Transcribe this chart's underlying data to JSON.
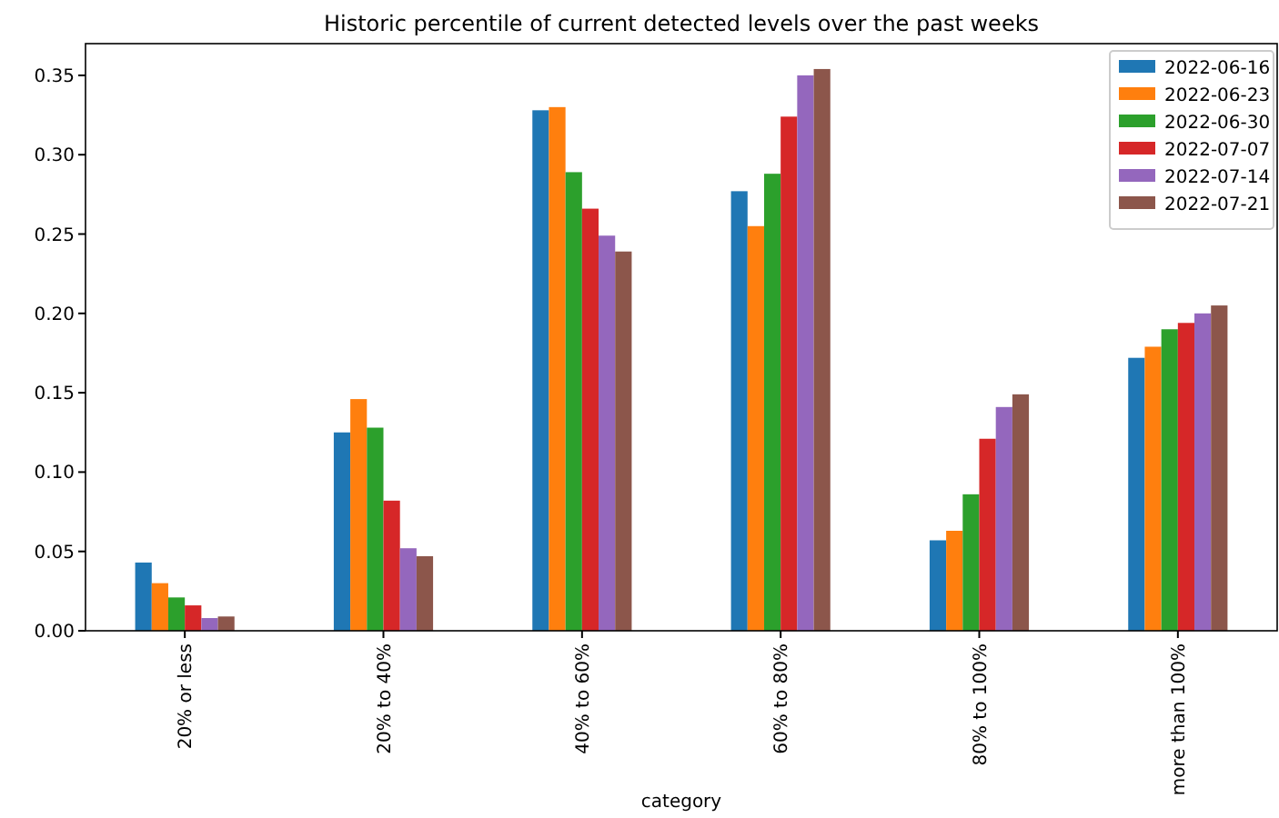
{
  "chart_data": {
    "type": "bar",
    "title": "Historic percentile of current detected levels over the past weeks",
    "xlabel": "category",
    "categories": [
      "20% or less",
      "20% to 40%",
      "40% to 60%",
      "60% to 80%",
      "80% to 100%",
      "more than 100%"
    ],
    "series": [
      {
        "name": "2022-06-16",
        "color": "#1f77b4",
        "values": [
          0.043,
          0.125,
          0.328,
          0.277,
          0.057,
          0.172
        ]
      },
      {
        "name": "2022-06-23",
        "color": "#ff7f0e",
        "values": [
          0.03,
          0.146,
          0.33,
          0.255,
          0.063,
          0.179
        ]
      },
      {
        "name": "2022-06-30",
        "color": "#2ca02c",
        "values": [
          0.021,
          0.128,
          0.289,
          0.288,
          0.086,
          0.19
        ]
      },
      {
        "name": "2022-07-07",
        "color": "#d62728",
        "values": [
          0.016,
          0.082,
          0.266,
          0.324,
          0.121,
          0.194
        ]
      },
      {
        "name": "2022-07-14",
        "color": "#9467bd",
        "values": [
          0.008,
          0.052,
          0.249,
          0.35,
          0.141,
          0.2
        ]
      },
      {
        "name": "2022-07-21",
        "color": "#8c564b",
        "values": [
          0.009,
          0.047,
          0.239,
          0.354,
          0.149,
          0.205
        ]
      }
    ],
    "ylim": [
      0,
      0.37
    ],
    "yticks": [
      {
        "value": 0,
        "label": "0.00"
      },
      {
        "value": 0.05,
        "label": "0.05"
      },
      {
        "value": 0.1,
        "label": "0.10"
      },
      {
        "value": 0.15,
        "label": "0.15"
      },
      {
        "value": 0.2,
        "label": "0.20"
      },
      {
        "value": 0.25,
        "label": "0.25"
      },
      {
        "value": 0.3,
        "label": "0.30"
      },
      {
        "value": 0.35,
        "label": "0.35"
      }
    ],
    "grid": false,
    "legend": "top right"
  }
}
